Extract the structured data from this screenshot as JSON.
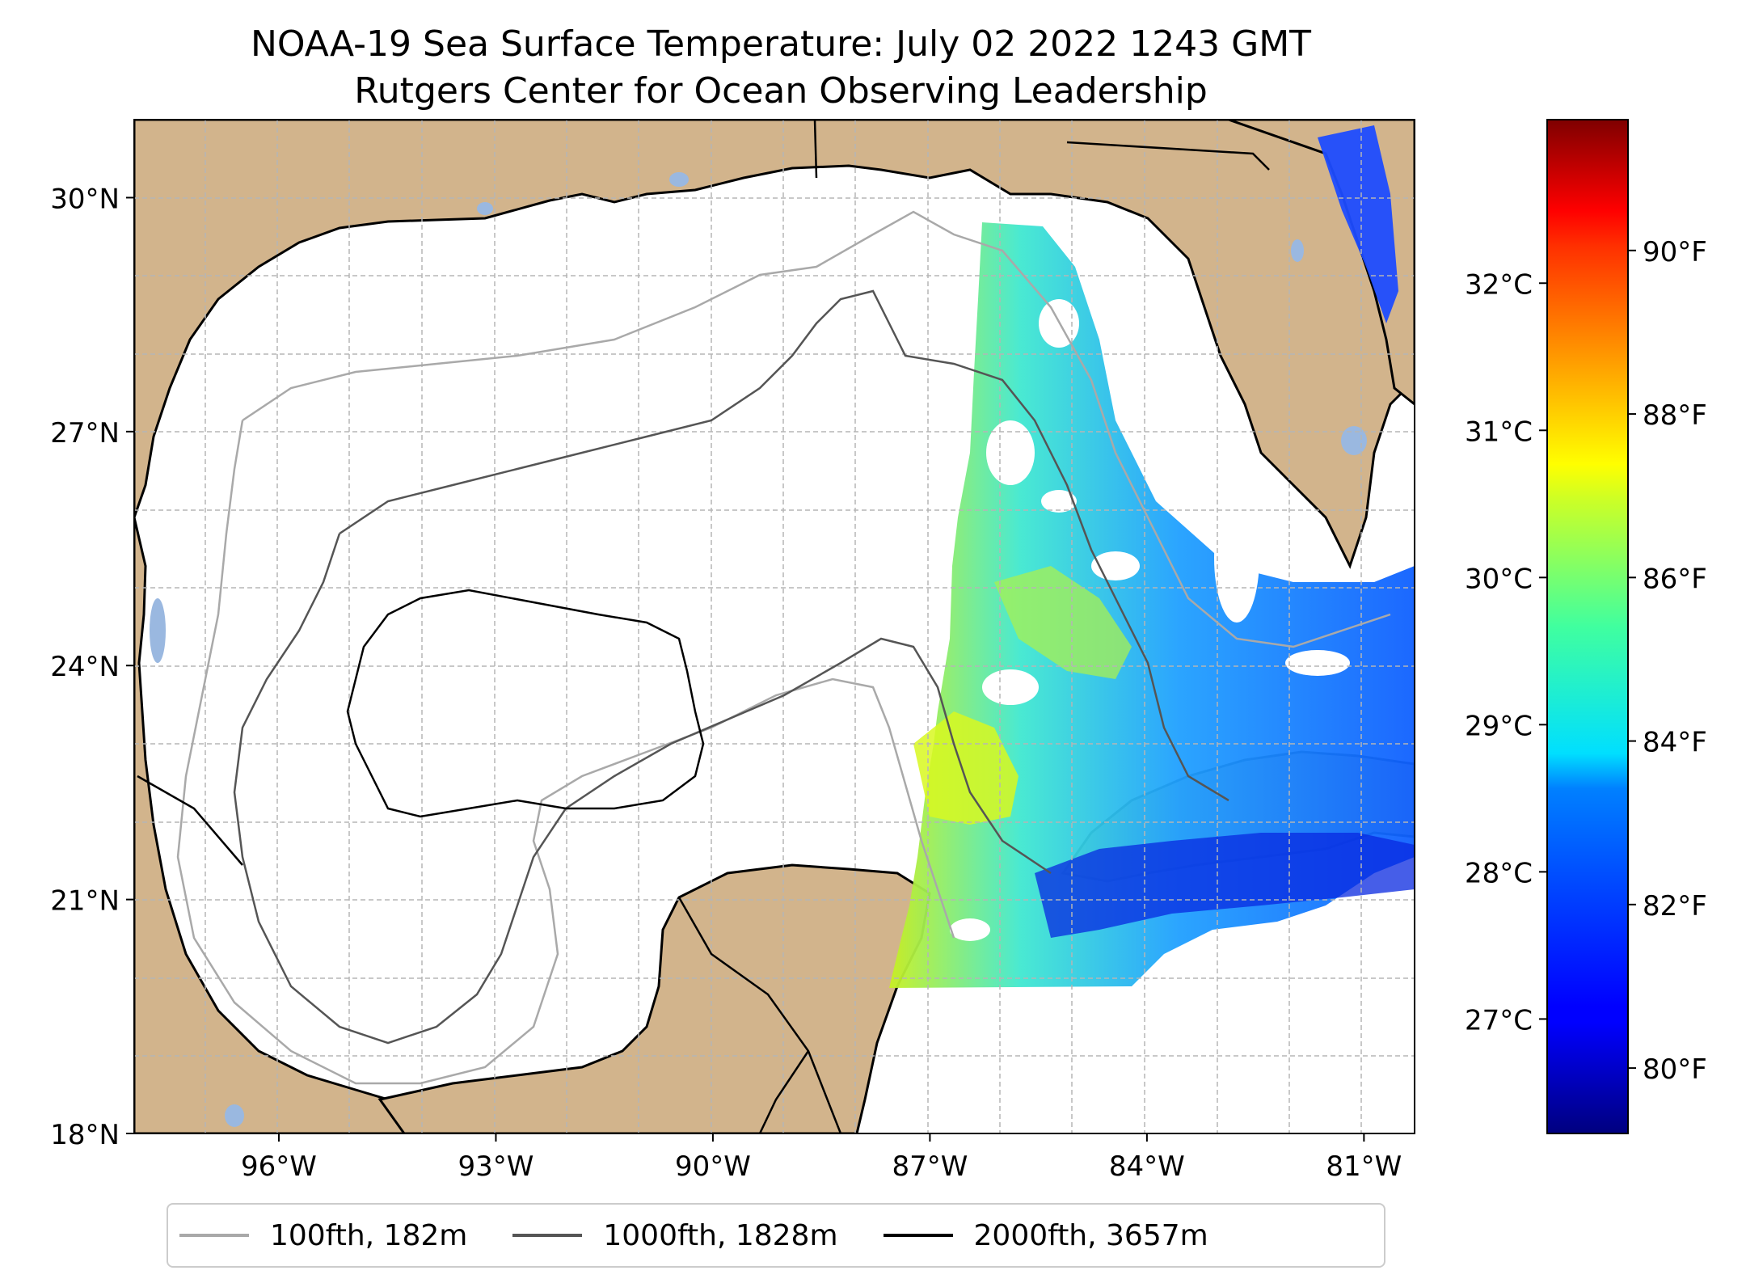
{
  "title": {
    "line1": "NOAA-19 Sea Surface Temperature: July 02 2022 1243 GMT",
    "line2": "Rutgers Center for Ocean Observing Leadership"
  },
  "map": {
    "lon_range": [
      -98,
      -80.3
    ],
    "lat_range": [
      18,
      31
    ],
    "lat_ticks": [
      {
        "value": 18,
        "label": "18°N"
      },
      {
        "value": 21,
        "label": "21°N"
      },
      {
        "value": 24,
        "label": "24°N"
      },
      {
        "value": 27,
        "label": "27°N"
      },
      {
        "value": 30,
        "label": "30°N"
      }
    ],
    "lon_ticks": [
      {
        "value": -96,
        "label": "96°W"
      },
      {
        "value": -93,
        "label": "93°W"
      },
      {
        "value": -90,
        "label": "90°W"
      },
      {
        "value": -87,
        "label": "87°W"
      },
      {
        "value": -84,
        "label": "84°W"
      },
      {
        "value": -81,
        "label": "81°W"
      }
    ],
    "gridlines": true,
    "land_color": "#d2b48c",
    "lake_color": "#9ab8e0",
    "ocean_color": "#ffffff"
  },
  "colorbar": {
    "colormap": "jet",
    "celsius_ticks": [
      {
        "value": 27,
        "label": "27°C"
      },
      {
        "value": 28,
        "label": "28°C"
      },
      {
        "value": 29,
        "label": "29°C"
      },
      {
        "value": 30,
        "label": "30°C"
      },
      {
        "value": 31,
        "label": "31°C"
      },
      {
        "value": 32,
        "label": "32°C"
      }
    ],
    "fahrenheit_ticks": [
      {
        "value": 80,
        "label": "80°F"
      },
      {
        "value": 82,
        "label": "82°F"
      },
      {
        "value": 84,
        "label": "84°F"
      },
      {
        "value": 86,
        "label": "86°F"
      },
      {
        "value": 88,
        "label": "88°F"
      },
      {
        "value": 90,
        "label": "90°F"
      }
    ]
  },
  "legend": [
    {
      "label": "100fth, 182m",
      "color": "#a9a9a9"
    },
    {
      "label": "1000fth, 1828m",
      "color": "#555555"
    },
    {
      "label": "2000fth, 3657m",
      "color": "#000000"
    }
  ]
}
